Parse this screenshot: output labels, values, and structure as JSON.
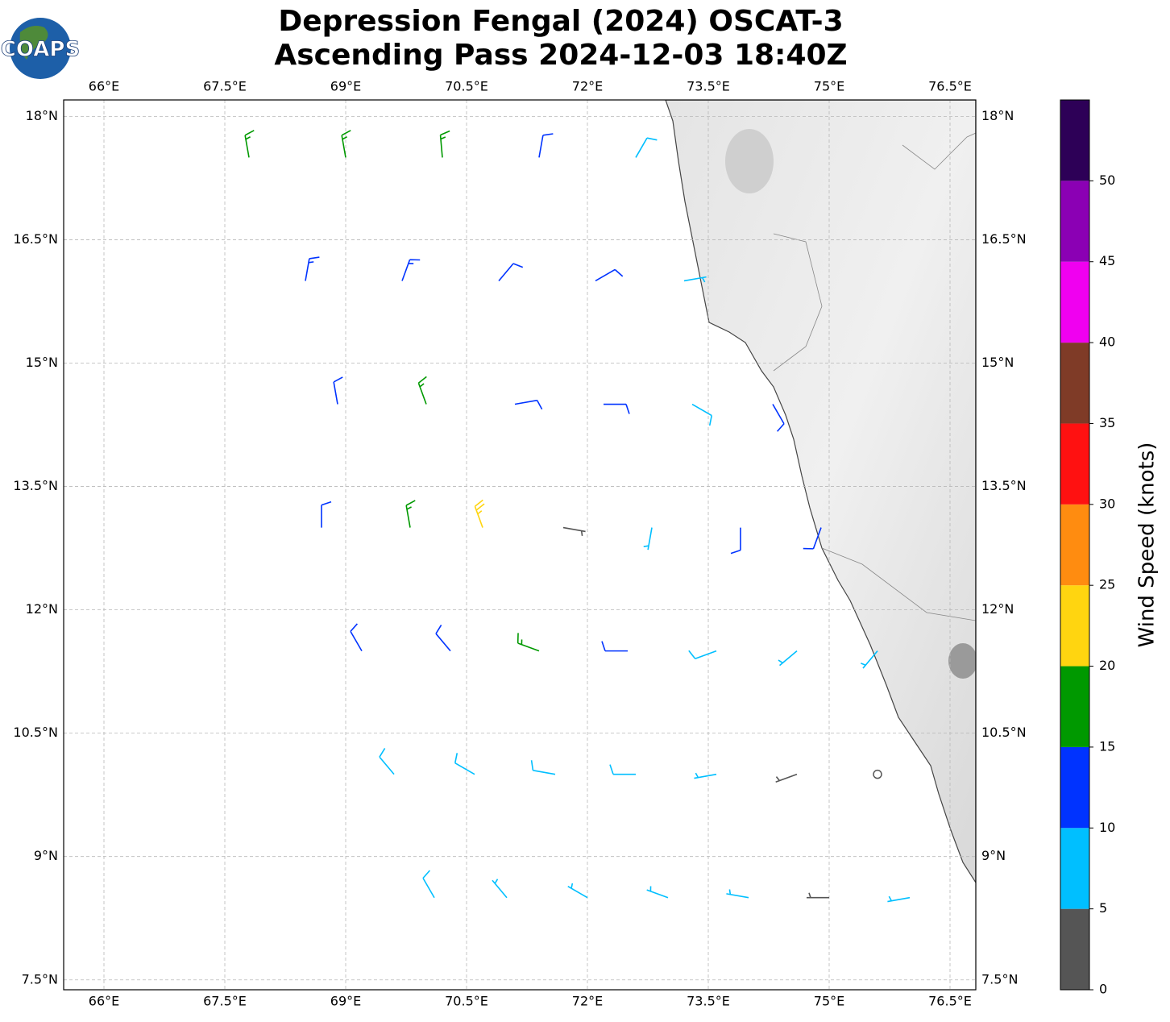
{
  "chart_data": {
    "type": "barb",
    "title": "Depression Fengal (2024) OSCAT-3",
    "subtitle": "Ascending Pass 2024-12-03 18:40Z",
    "logo": "COAPS",
    "xlim": [
      65.5,
      76.82
    ],
    "ylim": [
      7.38,
      18.2
    ],
    "xticks": [
      {
        "value": 66,
        "label": "66°E"
      },
      {
        "value": 67.5,
        "label": "67.5°E"
      },
      {
        "value": 69,
        "label": "69°E"
      },
      {
        "value": 70.5,
        "label": "70.5°E"
      },
      {
        "value": 72,
        "label": "72°E"
      },
      {
        "value": 73.5,
        "label": "73.5°E"
      },
      {
        "value": 75,
        "label": "75°E"
      },
      {
        "value": 76.5,
        "label": "76.5°E"
      }
    ],
    "yticks": [
      {
        "value": 7.5,
        "label": "7.5°N"
      },
      {
        "value": 9,
        "label": "9°N"
      },
      {
        "value": 10.5,
        "label": "10.5°N"
      },
      {
        "value": 12,
        "label": "12°N"
      },
      {
        "value": 13.5,
        "label": "13.5°N"
      },
      {
        "value": 15,
        "label": "15°N"
      },
      {
        "value": 16.5,
        "label": "16.5°N"
      },
      {
        "value": 18,
        "label": "18°N"
      }
    ],
    "grid": true,
    "colorbar": {
      "label": "Wind Speed (knots)",
      "clim": [
        0,
        55
      ],
      "ticks": [
        0,
        5,
        10,
        15,
        20,
        25,
        30,
        35,
        40,
        45,
        50
      ],
      "colors": [
        "#555555",
        "#00bfff",
        "#0033ff",
        "#009900",
        "#ffd510",
        "#ff8c10",
        "#ff1111",
        "#7f3b27",
        "#f000f0",
        "#8b00b4",
        "#2d0057"
      ]
    },
    "barbs": {
      "lon": [
        67.8,
        69,
        70.2,
        71.4,
        72.6,
        68.5,
        69.7,
        70.9,
        72.1,
        73.2,
        68.9,
        70,
        71.1,
        72.2,
        73.3,
        74.3,
        68.7,
        69.8,
        70.7,
        71.7,
        72.8,
        73.9,
        74.9,
        69.2,
        70.3,
        71.4,
        72.5,
        73.6,
        74.6,
        75.6,
        69.6,
        70.6,
        71.6,
        72.6,
        73.6,
        74.6,
        75.6,
        70.1,
        71,
        72,
        73,
        74,
        75,
        76
      ],
      "lat": [
        17.5,
        17.5,
        17.5,
        17.5,
        17.5,
        16,
        16,
        16,
        16,
        16,
        14.5,
        14.5,
        14.5,
        14.5,
        14.5,
        14.5,
        13,
        13,
        13,
        13,
        13,
        13,
        13,
        11.5,
        11.5,
        11.5,
        11.5,
        11.5,
        11.5,
        11.5,
        10,
        10,
        10,
        10,
        10,
        10,
        10,
        8.5,
        8.5,
        8.5,
        8.5,
        8.5,
        8.5,
        8.5
      ],
      "speed": [
        16,
        17,
        15,
        12,
        8,
        14,
        13,
        12,
        11,
        6,
        12,
        16,
        12,
        11,
        8,
        10,
        12,
        16,
        24,
        3,
        7,
        10,
        11,
        11,
        12,
        15,
        11,
        8,
        7,
        6,
        9,
        8,
        8,
        8,
        7,
        3,
        2,
        8,
        7,
        7,
        6,
        6,
        3,
        6
      ],
      "direction": [
        350,
        350,
        355,
        10,
        30,
        10,
        20,
        40,
        60,
        80,
        350,
        340,
        80,
        90,
        120,
        150,
        0,
        350,
        340,
        100,
        190,
        180,
        200,
        330,
        320,
        290,
        270,
        250,
        230,
        220,
        320,
        300,
        280,
        270,
        260,
        250,
        240,
        330,
        320,
        300,
        290,
        280,
        270,
        260
      ]
    }
  }
}
